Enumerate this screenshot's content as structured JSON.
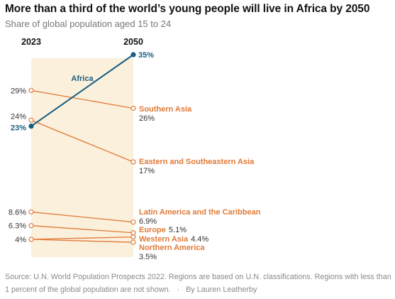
{
  "title": "More than a third of the world’s young people will live in Africa by 2050",
  "subtitle": "Share of global population aged 15 to 24",
  "source": "Source: U.N. World Population Prospects 2022. Regions are based on U.N. classifications. Regions with less than 1 percent of the global population are not shown.",
  "byline": "By Lauren Leatherby",
  "colors": {
    "highlight": "#1a5e80",
    "series": "#e07a38",
    "band": "#fbf0dc",
    "text": "#333333"
  },
  "chart_data": {
    "type": "line",
    "x": [
      "2023",
      "2050"
    ],
    "highlight_series": "Africa",
    "series": [
      {
        "name": "Africa",
        "values": [
          23,
          35
        ],
        "start_label": "23%",
        "end_label": "35%",
        "highlight": true
      },
      {
        "name": "Southern Asia",
        "values": [
          29,
          26
        ],
        "start_label": "29%",
        "end_label": "26%"
      },
      {
        "name": "Eastern and Southeastern Asia",
        "values": [
          24,
          17
        ],
        "start_label": "24%",
        "end_label": "17%"
      },
      {
        "name": "Latin America and the Caribbean",
        "values": [
          8.6,
          6.9
        ],
        "start_label": "8.6%",
        "end_label": "6.9%"
      },
      {
        "name": "Europe",
        "values": [
          6.3,
          5.1
        ],
        "start_label": "6.3%",
        "end_label": "5.1%"
      },
      {
        "name": "Western Asia",
        "values": [
          4,
          4.4
        ],
        "start_label": "4%",
        "end_label": "4.4%"
      },
      {
        "name": "Northern America",
        "values": [
          4,
          3.5
        ],
        "start_label": "",
        "end_label": "3.5%"
      }
    ],
    "ylim": [
      0,
      38
    ]
  }
}
